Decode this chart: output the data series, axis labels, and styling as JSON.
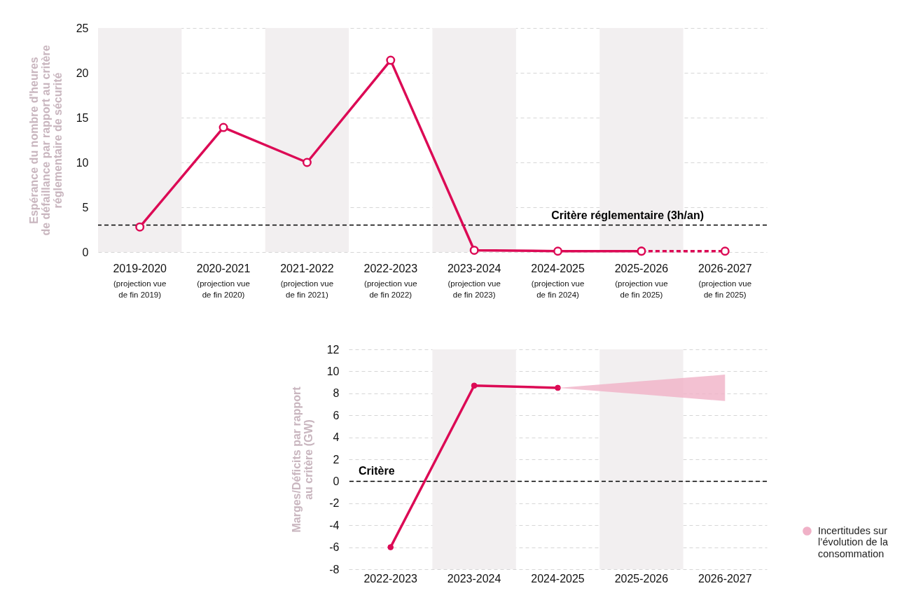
{
  "chart_data": [
    {
      "type": "line",
      "ylabel": "Espérance du nombre d'heures\nde défaillance par rapport au critère\nréglementaire de sécurité",
      "categories": [
        "2019-2020\n(projection vue\nde fin 2019)",
        "2020-2021\n(projection vue\nde fin 2020)",
        "2021-2022\n(projection vue\nde fin 2021)",
        "2022-2023\n(projection vue\nde fin 2022)",
        "2023-2024\n(projection vue\nde fin 2023)",
        "2024-2025\n(projection vue\nde fin 2024)",
        "2025-2026\n(projection vue\nde fin 2025)",
        "2026-2027\n(projection vue\nde fin 2025)"
      ],
      "series": [
        {
          "color": "#dc0a55",
          "line_style": "solid",
          "values": [
            2.8,
            13.9,
            10,
            21.4,
            0.2,
            0.1,
            0.1,
            null
          ]
        },
        {
          "color": "#dc0a55",
          "line_style": "dashed",
          "values": [
            null,
            null,
            null,
            null,
            null,
            null,
            0.1,
            0.1
          ]
        }
      ],
      "ylim": [
        0,
        25
      ],
      "yticks": [
        0,
        5,
        10,
        15,
        20,
        25
      ],
      "grid": "y",
      "marker": "circle",
      "ref_lines": [
        {
          "axis": "y",
          "value": 3,
          "label": "Critère réglementaire (3h/an)",
          "color": "#000000",
          "line_style": "dashed"
        }
      ],
      "bands": [
        {
          "axis": "x",
          "from": "2019-2020\n(projection vue\nde fin 2019)",
          "to": "2019-2020\n(projection vue\nde fin 2019)",
          "color": "#f2eff0"
        },
        {
          "axis": "x",
          "from": "2021-2022\n(projection vue\nde fin 2021)",
          "to": "2021-2022\n(projection vue\nde fin 2021)",
          "color": "#f2eff0"
        },
        {
          "axis": "x",
          "from": "2023-2024\n(projection vue\nde fin 2023)",
          "to": "2023-2024\n(projection vue\nde fin 2023)",
          "color": "#f2eff0"
        },
        {
          "axis": "x",
          "from": "2025-2026\n(projection vue\nde fin 2025)",
          "to": "2025-2026\n(projection vue\nde fin 2025)",
          "color": "#f2eff0"
        }
      ]
    },
    {
      "type": "line",
      "ylabel": "Marges/Déficits par rapport\nau critère (GW)",
      "categories": [
        "2022-2023",
        "2023-2024",
        "2024-2025",
        "2025-2026",
        "2026-2027"
      ],
      "series": [
        {
          "color": "#dc0a55",
          "values": [
            -6,
            8.7,
            8.5,
            null,
            null
          ]
        },
        {
          "type": "area",
          "name": "Incertitudes sur l’évolution de la consommation",
          "color": "#f0b1c7",
          "values": [
            null,
            null,
            null,
            null,
            null
          ],
          "lower": [
            null,
            null,
            8.5,
            7.9,
            7.3
          ],
          "upper": [
            null,
            null,
            8.5,
            9.1,
            9.7
          ]
        }
      ],
      "ylim": [
        -8,
        12
      ],
      "yticks": [
        -8,
        -6,
        -4,
        -2,
        0,
        2,
        4,
        6,
        8,
        10,
        12
      ],
      "grid": "y",
      "marker": "circle",
      "legend": "bottom right",
      "ref_lines": [
        {
          "axis": "y",
          "value": 0,
          "label": "Critère",
          "color": "#000000",
          "line_style": "dashed"
        }
      ],
      "bands": [
        {
          "axis": "x",
          "from": "2023-2024",
          "to": "2023-2024",
          "color": "#f2eff0"
        },
        {
          "axis": "x",
          "from": "2025-2026",
          "to": "2025-2026",
          "color": "#f2eff0"
        }
      ]
    }
  ]
}
